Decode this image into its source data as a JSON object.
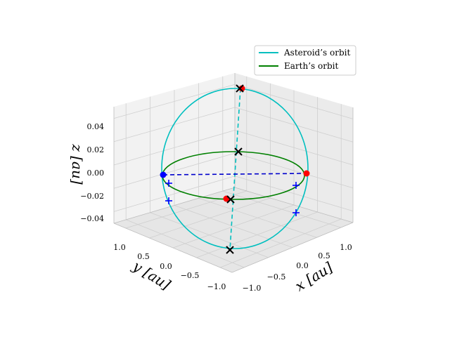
{
  "chart_data": {
    "type": "line",
    "projection": "3d",
    "xlabel": "x [au]",
    "ylabel": "y [au]",
    "zlabel": "z [au]",
    "x_ticks": [
      "−1.0",
      "−0.5",
      "0.0",
      "0.5",
      "1.0"
    ],
    "y_ticks": [
      "−1.0",
      "−0.5",
      "0.0",
      "0.5",
      "1.0"
    ],
    "z_ticks": [
      "−0.04",
      "−0.02",
      "0.00",
      "0.02",
      "0.04"
    ],
    "xlim": [
      -1.2,
      1.2
    ],
    "ylim": [
      -1.2,
      1.2
    ],
    "zlim": [
      -0.045,
      0.045
    ],
    "grid": true,
    "legend_position": "top-right",
    "series": [
      {
        "name": "Asteroid’s orbit",
        "color": "#00bfbf",
        "shape": "orbit"
      },
      {
        "name": "Earth’s orbit",
        "color": "#008000",
        "shape": "orbit"
      }
    ],
    "markers": [
      {
        "kind": "apsis-points",
        "color": "#0000ff",
        "symbol": "circle"
      },
      {
        "kind": "apsis-points",
        "color": "#ff0000",
        "symbol": "circle"
      },
      {
        "kind": "node-points",
        "color": "#0000ff",
        "symbol": "plus"
      },
      {
        "kind": "cross-points",
        "color": "#000000",
        "symbol": "x"
      }
    ]
  }
}
